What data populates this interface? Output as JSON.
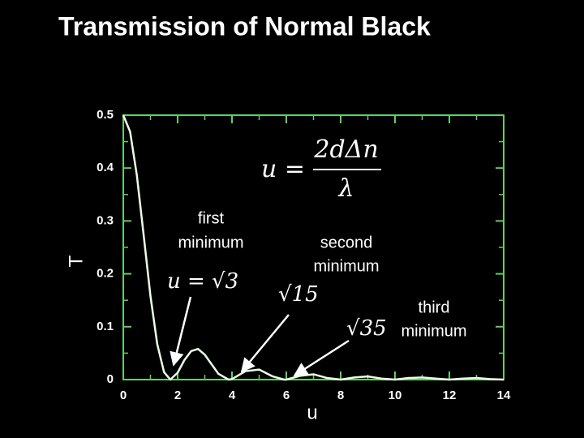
{
  "chart_data": {
    "type": "line",
    "title": "Transmission of Normal Black",
    "x_label": "u",
    "y_label": "T",
    "annotations": [
      "first",
      "minimum",
      "second",
      "minimum",
      "third",
      "minimum",
      "u = √3",
      "√15",
      "√35",
      "u =",
      "2dΔn",
      "λ"
    ],
    "x": [
      0,
      0.25,
      0.5,
      0.75,
      1,
      1.25,
      1.5,
      1.732,
      2,
      2.25,
      2.5,
      2.75,
      3,
      3.25,
      3.5,
      3.873,
      4,
      4.5,
      5,
      5.5,
      5.916,
      6,
      6.5,
      7,
      7.5,
      8,
      8.5,
      9,
      9.5,
      10,
      10.5,
      11,
      11.5,
      12,
      12.5,
      13,
      13.5,
      14
    ],
    "series": [
      {
        "name": "T",
        "color": "#eaffe4",
        "values": [
          0.5,
          0.469,
          0.386,
          0.273,
          0.158,
          0.067,
          0.014,
          0,
          0.013,
          0.037,
          0.054,
          0.058,
          0.047,
          0.029,
          0.011,
          0,
          0.001,
          0.016,
          0.019,
          0.006,
          0,
          0,
          0.007,
          0.01,
          0.003,
          0,
          0.004,
          0.006,
          0.002,
          0,
          0.003,
          0.004,
          0.002,
          0,
          0.002,
          0.003,
          0.001,
          0
        ]
      }
    ],
    "xlim": [
      0,
      14
    ],
    "ylim": [
      0,
      0.5
    ],
    "xticks": [
      0,
      2,
      4,
      6,
      8,
      10,
      12,
      14
    ],
    "yticks": [
      0,
      0.1,
      0.2,
      0.3,
      0.4,
      0.5
    ],
    "frame_color": "#66cc66"
  }
}
